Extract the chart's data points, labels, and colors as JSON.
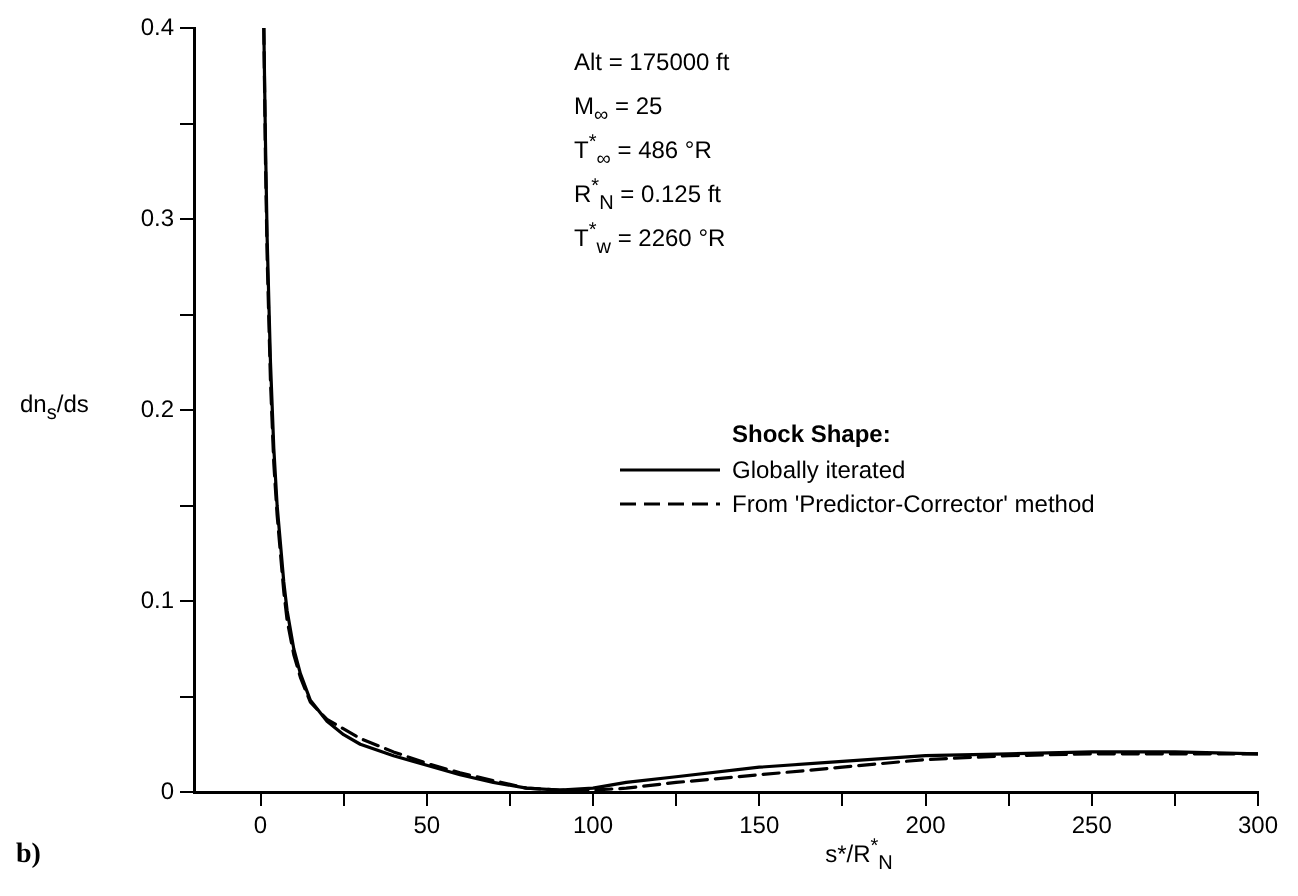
{
  "chart_data": {
    "type": "line",
    "xlabel": "s*/R$^{*}$$_{N}$",
    "ylabel": "dn$_{s}$/ds",
    "legend_title": "Shock Shape:",
    "legend": "right",
    "grid": false,
    "marker": "none",
    "annotations": [
      "Alt = 175000 ft",
      "M$_{∞}$ = 25",
      "T$^{*}$$_{∞}$ = 486 °R",
      "R$^{*}$$_{N}$ = 0.125 ft",
      "T$^{*}$$_{w}$ = 2260 °R",
      "b)"
    ],
    "xlim": [
      -20,
      300
    ],
    "xticks": [
      0,
      {
        "value": 25,
        "label": null
      },
      50,
      {
        "value": 75,
        "label": null
      },
      100,
      {
        "value": 125,
        "label": null
      },
      150,
      {
        "value": 175,
        "label": null
      },
      200,
      {
        "value": 225,
        "label": null
      },
      250,
      {
        "value": 275,
        "label": null
      },
      300
    ],
    "ylim": [
      0,
      0.4
    ],
    "yticks": [
      0,
      {
        "value": 0.05,
        "label": null
      },
      0.1,
      {
        "value": 0.15,
        "label": null
      },
      0.2,
      {
        "value": 0.25,
        "label": null
      },
      0.3,
      {
        "value": 0.35,
        "label": null
      },
      0.4
    ],
    "x": [
      1,
      1.5,
      2,
      3,
      4,
      5,
      6,
      7,
      8,
      10,
      12,
      15,
      20,
      25,
      30,
      40,
      50,
      60,
      70,
      80,
      90,
      100,
      110,
      125,
      150,
      175,
      200,
      225,
      250,
      275,
      300
    ],
    "series": [
      {
        "name": "Globally iterated",
        "color": "#000000",
        "line_style": "solid",
        "values": [
          0.4,
          0.34,
          0.29,
          0.225,
          0.18,
          0.15,
          0.13,
          0.11,
          0.095,
          0.075,
          0.062,
          0.048,
          0.037,
          0.03,
          0.025,
          0.019,
          0.014,
          0.009,
          0.005,
          0.002,
          0.001,
          0.002,
          0.005,
          0.008,
          0.013,
          0.016,
          0.019,
          0.02,
          0.021,
          0.021,
          0.02
        ]
      },
      {
        "name": "From 'Predictor-Corrector' method",
        "color": "#000000",
        "line_style": "dashed",
        "values": [
          0.4,
          0.33,
          0.28,
          0.215,
          0.172,
          0.145,
          0.125,
          0.105,
          0.09,
          0.072,
          0.06,
          0.047,
          0.038,
          0.033,
          0.028,
          0.021,
          0.015,
          0.01,
          0.006,
          0.002,
          0.001,
          0.001,
          0.002,
          0.005,
          0.009,
          0.013,
          0.017,
          0.019,
          0.02,
          0.02,
          0.02
        ]
      }
    ]
  }
}
